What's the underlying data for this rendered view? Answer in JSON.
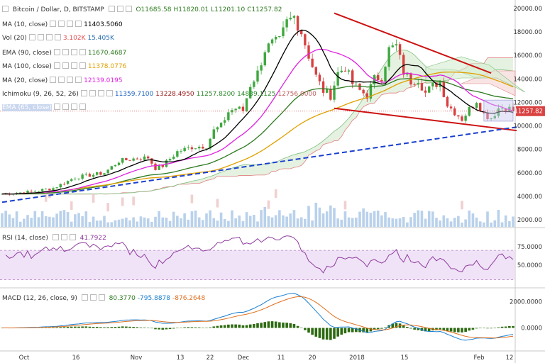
{
  "header": {
    "symbol": "Bitcoin / Dollar, D, BITSTAMP",
    "ohlc": [
      {
        "k": "O",
        "v": "11685.58"
      },
      {
        "k": "H",
        "v": "11820.01"
      },
      {
        "k": "L",
        "v": "11201.10"
      },
      {
        "k": "C",
        "v": "11257.82"
      }
    ]
  },
  "indicators": [
    {
      "label": "MA (10, close)",
      "values": [
        "11403.5060"
      ],
      "colors": [
        "#000000"
      ]
    },
    {
      "label": "Vol (20)",
      "values": [
        "3.102K",
        "15.405K"
      ],
      "colors": [
        "#e05050",
        "#2a6fb0"
      ]
    },
    {
      "label": "EMA (90, close)",
      "values": [
        "11670.4687"
      ],
      "colors": [
        "#2d7a1f"
      ]
    },
    {
      "label": "MA (100, close)",
      "values": [
        "11378.0776"
      ],
      "colors": [
        "#e0a000"
      ]
    },
    {
      "label": "MA (20, close)",
      "values": [
        "12139.0195"
      ],
      "colors": [
        "#e020e0"
      ]
    },
    {
      "label": "Ichimoku (9, 26, 52, 26)",
      "values": [
        "11359.7100",
        "13228.4950",
        "11257.8200",
        "14839.1125",
        "12756.0000"
      ],
      "colors": [
        "#1a60c0",
        "#9b1b1b",
        "#2d8a2d",
        "#2d8a2d",
        "#c06060"
      ]
    },
    {
      "label": "EMA (65, close)",
      "values": [],
      "colors": []
    }
  ],
  "rsi": {
    "label": "RSI (14, close)",
    "value": "41.7922",
    "color": "#8e3c9e"
  },
  "macd": {
    "label": "MACD (12, 26, close, 9)",
    "values": [
      "80.3770",
      "-795.8878",
      "-876.2648"
    ],
    "colors": [
      "#2d7a1f",
      "#1a7fd0",
      "#e07020"
    ]
  },
  "price_axis": {
    "labels": [
      "20000.00",
      "18000.00",
      "16000.00",
      "14000.00",
      "12000.00",
      "10000.00",
      "8000.00",
      "6000.00",
      "4000.00",
      "2000.00"
    ],
    "current": "11257.82"
  },
  "rsi_axis": {
    "labels": [
      "75.0000",
      "50.0000"
    ]
  },
  "macd_axis": {
    "labels": [
      "2000.0000",
      "0.0000"
    ]
  },
  "time_axis": {
    "labels": [
      "Oct",
      "16",
      "Nov",
      "13",
      "22",
      "Dec",
      "11",
      "20",
      "2018",
      "15",
      "Feb",
      "12"
    ]
  },
  "colors": {
    "up": "#3fa83f",
    "down": "#d94040",
    "trend_upper": "#cc1111",
    "trend_lower": "#cc1111",
    "trend_blue": "#1a3fd0"
  },
  "chart_data": {
    "type": "candlestick",
    "price_range": [
      1400,
      20600
    ],
    "days": 140,
    "trendlines": [
      {
        "name": "upper-resistance",
        "from": [
          91,
          19600
        ],
        "to": [
          134,
          14500
        ],
        "color": "#cc1111"
      },
      {
        "name": "lower-support",
        "from": [
          91,
          11500
        ],
        "to": [
          141,
          9600
        ],
        "color": "#cc1111"
      },
      {
        "name": "long-term-support",
        "from": [
          0,
          3500
        ],
        "to": [
          141,
          9900
        ],
        "color": "#1a3fd0",
        "dashed": true
      }
    ],
    "rsi_range": [
      20,
      100
    ],
    "rsi_levels": [
      70,
      30
    ],
    "macd_range": [
      -1700,
      3000
    ]
  }
}
